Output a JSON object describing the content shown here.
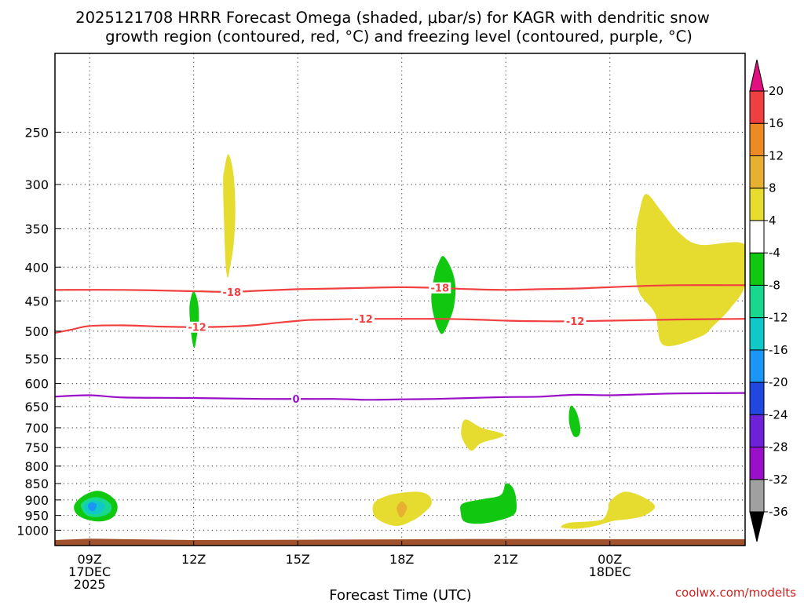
{
  "chart_data": {
    "type": "heatmap",
    "title_lines": [
      "2025121708 HRRR Forecast Omega (shaded, μbar/s) for KAGR with dendritic snow",
      "growth region (contoured, red, °C) and freezing level (contoured, purple, °C)"
    ],
    "xlabel": "Forecast Time (UTC)",
    "credit": "coolwx.com/modelts",
    "x_range_hours": [
      8,
      27.9
    ],
    "x_ticks": [
      {
        "hour": 9,
        "lines": [
          "09Z",
          "17DEC",
          "2025"
        ]
      },
      {
        "hour": 12,
        "lines": [
          "12Z"
        ]
      },
      {
        "hour": 15,
        "lines": [
          "15Z"
        ]
      },
      {
        "hour": 18,
        "lines": [
          "18Z"
        ]
      },
      {
        "hour": 21,
        "lines": [
          "21Z"
        ]
      },
      {
        "hour": 24,
        "lines": [
          "00Z",
          "18DEC"
        ]
      }
    ],
    "y_axis": {
      "type": "log_pressure_inverted",
      "unit": "hPa",
      "top": 190,
      "bottom": 1055
    },
    "y_ticks": [
      250,
      300,
      350,
      400,
      450,
      500,
      550,
      600,
      650,
      700,
      750,
      800,
      850,
      900,
      950,
      1000
    ],
    "colorbar": {
      "levels": [
        -36,
        -32,
        -28,
        -24,
        -20,
        -16,
        -12,
        -8,
        -4,
        4,
        8,
        12,
        16,
        20
      ],
      "colors": [
        "#000000",
        "#a0a0a0",
        "#9a10c8",
        "#6e22d8",
        "#2048e0",
        "#1c96f4",
        "#10c8c8",
        "#18d890",
        "#10c810",
        "#ffffff",
        "#e8dc30",
        "#e8b030",
        "#ec8a24",
        "#ee4040",
        "#e01080"
      ]
    },
    "terrain_color": "#a0522d",
    "shaded_regions": [
      {
        "name": "upper-yellow-13z",
        "value_range": "4 to 8",
        "color": "#e6dc30",
        "points": [
          [
            13.0,
            270
          ],
          [
            13.15,
            290
          ],
          [
            13.2,
            330
          ],
          [
            13.15,
            370
          ],
          [
            13.05,
            400
          ],
          [
            12.98,
            415
          ],
          [
            12.92,
            395
          ],
          [
            12.88,
            350
          ],
          [
            12.85,
            300
          ],
          [
            12.88,
            285
          ]
        ]
      },
      {
        "name": "green-12z-dgz",
        "value_range": "-8 to -4",
        "color": "#10c810",
        "points": [
          [
            12.0,
            435
          ],
          [
            12.12,
            452
          ],
          [
            12.15,
            480
          ],
          [
            12.1,
            505
          ],
          [
            12.02,
            530
          ],
          [
            11.94,
            510
          ],
          [
            11.88,
            470
          ],
          [
            11.9,
            450
          ]
        ]
      },
      {
        "name": "green-19z-dgz",
        "value_range": "-8 to -4",
        "color": "#10c810",
        "points": [
          [
            19.2,
            385
          ],
          [
            19.45,
            405
          ],
          [
            19.55,
            430
          ],
          [
            19.5,
            460
          ],
          [
            19.35,
            485
          ],
          [
            19.15,
            505
          ],
          [
            18.95,
            480
          ],
          [
            18.85,
            445
          ],
          [
            18.95,
            410
          ],
          [
            19.05,
            395
          ]
        ]
      },
      {
        "name": "yellow-01z-upper",
        "value_range": "4 to 8",
        "color": "#e6dc30",
        "points": [
          [
            25.05,
            310
          ],
          [
            25.5,
            330
          ],
          [
            26.0,
            355
          ],
          [
            26.6,
            370
          ],
          [
            27.9,
            370
          ],
          [
            27.9,
            425
          ],
          [
            27.5,
            460
          ],
          [
            27.0,
            490
          ],
          [
            26.6,
            510
          ],
          [
            25.55,
            525
          ],
          [
            25.3,
            470
          ],
          [
            24.8,
            430
          ],
          [
            24.75,
            360
          ],
          [
            24.85,
            330
          ]
        ]
      },
      {
        "name": "green-09z-low",
        "value_range": "-8 to -4",
        "color": "#10c810",
        "points": [
          [
            8.6,
            908
          ],
          [
            8.85,
            885
          ],
          [
            9.2,
            872
          ],
          [
            9.5,
            880
          ],
          [
            9.75,
            903
          ],
          [
            9.8,
            930
          ],
          [
            9.65,
            958
          ],
          [
            9.3,
            970
          ],
          [
            8.9,
            963
          ],
          [
            8.65,
            948
          ],
          [
            8.55,
            928
          ]
        ]
      },
      {
        "name": "seagreen-09z-low",
        "value_range": "-12 to -8",
        "color": "#18d890",
        "points": [
          [
            8.75,
            915
          ],
          [
            9.0,
            895
          ],
          [
            9.3,
            893
          ],
          [
            9.6,
            912
          ],
          [
            9.58,
            940
          ],
          [
            9.25,
            955
          ],
          [
            8.9,
            948
          ]
        ]
      },
      {
        "name": "cyan-09z-low",
        "value_range": "-16 to -12",
        "color": "#10c8c8",
        "points": [
          [
            8.85,
            918
          ],
          [
            9.05,
            903
          ],
          [
            9.3,
            905
          ],
          [
            9.45,
            920
          ],
          [
            9.3,
            942
          ],
          [
            9.05,
            945
          ],
          [
            8.88,
            935
          ]
        ]
      },
      {
        "name": "blue-09z-low",
        "value_range": "-20 to -16",
        "color": "#1c96f4",
        "points": [
          [
            8.95,
            920
          ],
          [
            9.0,
            910
          ],
          [
            9.1,
            908
          ],
          [
            9.2,
            915
          ],
          [
            9.15,
            932
          ],
          [
            9.03,
            935
          ]
        ]
      },
      {
        "name": "yellow-18z-low",
        "value_range": "4 to 8",
        "color": "#e6dc30",
        "points": [
          [
            17.2,
            910
          ],
          [
            17.55,
            888
          ],
          [
            18.0,
            878
          ],
          [
            18.5,
            875
          ],
          [
            18.8,
            888
          ],
          [
            18.85,
            915
          ],
          [
            18.6,
            945
          ],
          [
            18.3,
            968
          ],
          [
            17.9,
            985
          ],
          [
            17.5,
            975
          ],
          [
            17.2,
            950
          ]
        ]
      },
      {
        "name": "orange-18z-low",
        "value_range": "8 to 12",
        "color": "#e8b030",
        "points": [
          [
            17.85,
            925
          ],
          [
            18.0,
            905
          ],
          [
            18.15,
            923
          ],
          [
            18.05,
            950
          ],
          [
            17.95,
            955
          ]
        ]
      },
      {
        "name": "yellow-20z-mid",
        "value_range": "4 to 8",
        "color": "#e6dc30",
        "points": [
          [
            19.85,
            680
          ],
          [
            20.3,
            700
          ],
          [
            20.95,
            718
          ],
          [
            20.3,
            738
          ],
          [
            20.0,
            758
          ],
          [
            19.75,
            728
          ],
          [
            19.72,
            700
          ]
        ]
      },
      {
        "name": "green-21z-low",
        "value_range": "-8 to -4",
        "color": "#10c810",
        "points": [
          [
            19.75,
            912
          ],
          [
            20.3,
            898
          ],
          [
            20.85,
            885
          ],
          [
            21.0,
            850
          ],
          [
            21.2,
            862
          ],
          [
            21.3,
            900
          ],
          [
            21.25,
            945
          ],
          [
            20.75,
            968
          ],
          [
            20.2,
            978
          ],
          [
            19.8,
            970
          ],
          [
            19.7,
            940
          ]
        ]
      },
      {
        "name": "green-23z-mid",
        "value_range": "-8 to -4",
        "color": "#10c810",
        "points": [
          [
            22.9,
            648
          ],
          [
            23.05,
            665
          ],
          [
            23.15,
            700
          ],
          [
            23.1,
            720
          ],
          [
            22.95,
            720
          ],
          [
            22.83,
            690
          ],
          [
            22.83,
            660
          ]
        ]
      },
      {
        "name": "yellow-00z-low",
        "value_range": "4 to 8",
        "color": "#e6dc30",
        "points": [
          [
            24.0,
            905
          ],
          [
            24.4,
            875
          ],
          [
            24.9,
            888
          ],
          [
            25.3,
            920
          ],
          [
            25.0,
            950
          ],
          [
            24.55,
            962
          ],
          [
            24.1,
            968
          ],
          [
            23.6,
            985
          ],
          [
            23.05,
            995
          ],
          [
            22.6,
            990
          ],
          [
            22.8,
            975
          ],
          [
            23.4,
            970
          ],
          [
            23.8,
            962
          ],
          [
            23.95,
            930
          ]
        ]
      }
    ],
    "contours": [
      {
        "name": "dgz-minus-18",
        "label": "-18",
        "color": "#f04040",
        "points": [
          [
            8,
            433
          ],
          [
            10,
            433
          ],
          [
            12,
            435
          ],
          [
            13,
            436
          ],
          [
            14,
            434
          ],
          [
            15,
            432
          ],
          [
            16,
            431
          ],
          [
            17,
            430
          ],
          [
            18,
            429
          ],
          [
            19,
            430
          ],
          [
            20,
            432
          ],
          [
            21,
            433
          ],
          [
            22,
            432
          ],
          [
            23,
            431
          ],
          [
            24,
            429
          ],
          [
            25,
            427
          ],
          [
            26,
            426
          ],
          [
            27.9,
            426
          ]
        ],
        "label_positions": [
          [
            13.1,
            436
          ],
          [
            19.1,
            430
          ]
        ]
      },
      {
        "name": "dgz-minus-12",
        "label": "-12",
        "color": "#f04040",
        "points": [
          [
            8,
            503
          ],
          [
            8.5,
            497
          ],
          [
            9,
            491
          ],
          [
            10,
            490
          ],
          [
            11,
            492
          ],
          [
            12,
            493
          ],
          [
            13,
            492
          ],
          [
            13.7,
            490
          ],
          [
            14.5,
            485
          ],
          [
            15.3,
            481
          ],
          [
            16,
            480
          ],
          [
            17,
            479
          ],
          [
            18,
            479
          ],
          [
            19,
            479
          ],
          [
            20,
            480
          ],
          [
            21,
            482
          ],
          [
            22,
            483
          ],
          [
            23,
            483
          ],
          [
            24,
            482
          ],
          [
            25,
            481
          ],
          [
            26,
            480
          ],
          [
            27.9,
            479
          ]
        ],
        "label_positions": [
          [
            12.1,
            493
          ],
          [
            16.9,
            479
          ],
          [
            23.0,
            483
          ]
        ]
      },
      {
        "name": "freezing-level-0",
        "label": "0",
        "color": "#9a10c8",
        "points": [
          [
            8,
            628
          ],
          [
            9,
            625
          ],
          [
            10,
            630
          ],
          [
            12,
            631
          ],
          [
            14,
            633
          ],
          [
            16,
            633
          ],
          [
            17,
            635
          ],
          [
            18,
            634
          ],
          [
            19,
            633
          ],
          [
            20,
            631
          ],
          [
            21,
            629
          ],
          [
            22,
            628
          ],
          [
            23,
            624
          ],
          [
            24,
            625
          ],
          [
            25,
            623
          ],
          [
            26,
            621
          ],
          [
            27.9,
            620
          ]
        ],
        "label_positions": [
          [
            14.95,
            633
          ]
        ]
      }
    ],
    "terrain": {
      "top_segments": [
        [
          8,
          1035
        ],
        [
          9,
          1030
        ],
        [
          10,
          1032
        ],
        [
          12,
          1035
        ],
        [
          17,
          1033
        ],
        [
          20,
          1031
        ],
        [
          24,
          1032
        ],
        [
          27.9,
          1032
        ]
      ]
    }
  }
}
